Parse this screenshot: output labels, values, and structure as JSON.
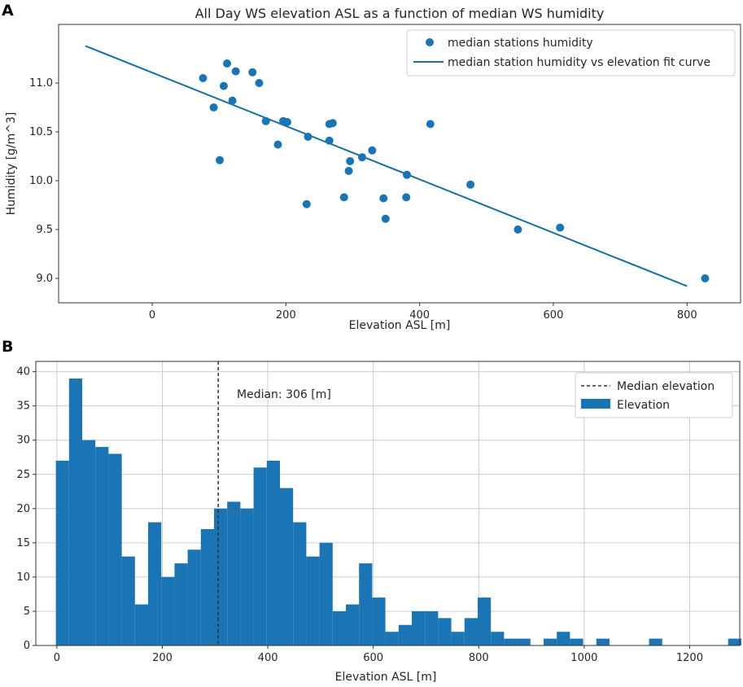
{
  "colors": {
    "series": "#1b75b4",
    "fit_line": "#1b6f9f",
    "median_line": "#333333",
    "grid": "#cccccc",
    "axes": "#333333"
  },
  "chart_data": [
    {
      "panel_label": "A",
      "type": "scatter",
      "title": "All Day WS elevation ASL as a function of median WS humidity",
      "xlabel": "Elevation ASL [m]",
      "ylabel": "Humidity [g/m^3]",
      "xlim": [
        -140,
        880
      ],
      "ylim": [
        8.75,
        11.6
      ],
      "xticks": [
        0,
        200,
        400,
        600,
        800
      ],
      "yticks": [
        9.0,
        9.5,
        10.0,
        10.5,
        11.0
      ],
      "ytick_labels": [
        "9.0",
        "9.5",
        "10.0",
        "10.5",
        "11.0"
      ],
      "grid": false,
      "legend_position": "top-right",
      "series": [
        {
          "name": "median stations humidity",
          "kind": "scatter",
          "points": [
            [
              76,
              11.05
            ],
            [
              112,
              11.2
            ],
            [
              125,
              11.12
            ],
            [
              150,
              11.11
            ],
            [
              107,
              10.97
            ],
            [
              160,
              11.0
            ],
            [
              120,
              10.82
            ],
            [
              92,
              10.75
            ],
            [
              170,
              10.61
            ],
            [
              196,
              10.61
            ],
            [
              202,
              10.6
            ],
            [
              265,
              10.58
            ],
            [
              270,
              10.59
            ],
            [
              416,
              10.58
            ],
            [
              233,
              10.45
            ],
            [
              265,
              10.41
            ],
            [
              188,
              10.37
            ],
            [
              329,
              10.31
            ],
            [
              314,
              10.24
            ],
            [
              101,
              10.21
            ],
            [
              296,
              10.2
            ],
            [
              294,
              10.1
            ],
            [
              381,
              10.06
            ],
            [
              476,
              9.96
            ],
            [
              287,
              9.83
            ],
            [
              346,
              9.82
            ],
            [
              380,
              9.83
            ],
            [
              231,
              9.76
            ],
            [
              349,
              9.61
            ],
            [
              547,
              9.5
            ],
            [
              610,
              9.52
            ],
            [
              827,
              9.0
            ]
          ]
        },
        {
          "name": "median station humidity vs elevation fit curve",
          "kind": "line",
          "points": [
            [
              -100,
              11.38
            ],
            [
              800,
              8.92
            ]
          ]
        }
      ]
    },
    {
      "panel_label": "B",
      "type": "bar",
      "subtype": "histogram",
      "title": "",
      "xlabel": "Elevation ASL [m]",
      "ylabel": "",
      "xlim": [
        -40,
        1295
      ],
      "ylim": [
        0,
        41.5
      ],
      "xticks": [
        0,
        200,
        400,
        600,
        800,
        1000,
        1200
      ],
      "yticks": [
        0,
        5,
        10,
        15,
        20,
        25,
        30,
        35,
        40
      ],
      "grid": true,
      "legend_position": "top-right",
      "bin_start": -2,
      "bin_width": 25,
      "values": [
        27,
        39,
        30,
        29,
        28,
        13,
        6,
        18,
        10,
        12,
        14,
        17,
        20,
        21,
        20,
        26,
        27,
        23,
        18,
        13,
        15,
        5,
        6,
        12,
        7,
        2,
        3,
        5,
        5,
        4,
        2,
        4,
        7,
        2,
        1,
        1,
        0,
        1,
        2,
        1,
        0,
        1,
        0,
        0,
        0,
        1,
        0,
        0,
        0,
        0,
        0,
        1
      ],
      "series_name": "Elevation",
      "median": {
        "name": "Median elevation",
        "value": 306,
        "label": "Median: 306 [m]"
      }
    }
  ]
}
